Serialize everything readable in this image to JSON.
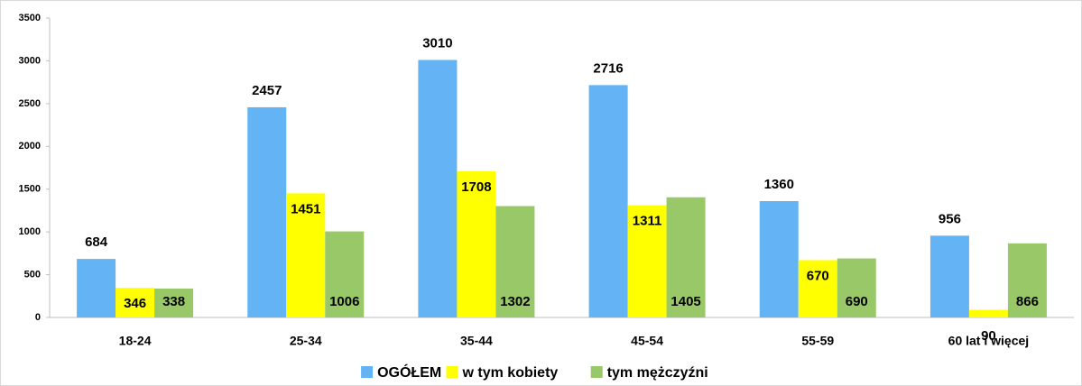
{
  "chart_data": {
    "type": "bar",
    "categories": [
      "18-24",
      "25-34",
      "35-44",
      "45-54",
      "55-59",
      "60 lat i więcej"
    ],
    "series": [
      {
        "name": "OGÓŁEM",
        "color": "#63b3f5",
        "values": [
          684,
          2457,
          3010,
          2716,
          1360,
          956
        ]
      },
      {
        "name": "w tym kobiety",
        "color": "#ffff00",
        "values": [
          346,
          1451,
          1708,
          1311,
          670,
          90
        ]
      },
      {
        "name": "tym mężczyźni",
        "color": "#99c868",
        "values": [
          338,
          1006,
          1302,
          1405,
          690,
          866
        ]
      }
    ],
    "ylim": [
      0,
      3500
    ],
    "yticks": [
      0,
      500,
      1000,
      1500,
      2000,
      2500,
      3000,
      3500
    ],
    "grid": false,
    "legend": "bottom"
  }
}
